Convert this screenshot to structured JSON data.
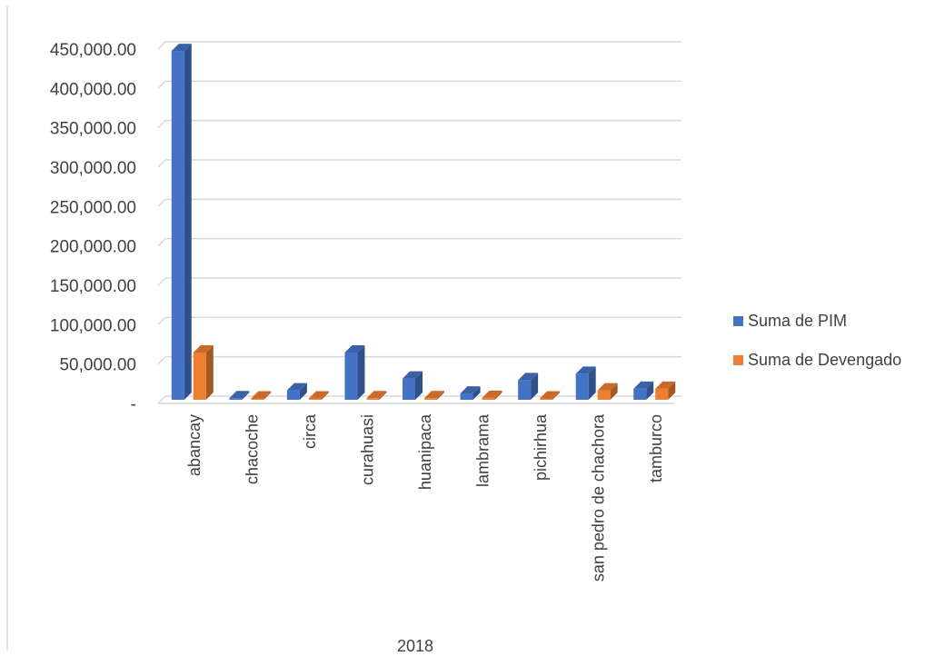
{
  "chart_data": {
    "type": "bar",
    "style": "3d-clustered-column",
    "categories": [
      "abancay",
      "chacoche",
      "circa",
      "curahuasi",
      "huanipaca",
      "lambrama",
      "pichirhua",
      "san pedro de chachora",
      "tamburco"
    ],
    "category_group": "2018",
    "series": [
      {
        "name": "Suma de PIM",
        "color": "#4472c4",
        "values": [
          443000,
          2000,
          12000,
          60000,
          27000,
          8000,
          25000,
          33000,
          14000
        ]
      },
      {
        "name": "Suma de Devengado",
        "color": "#ed7d31",
        "values": [
          60000,
          0,
          1000,
          2000,
          2000,
          2500,
          0,
          12000,
          14000
        ]
      }
    ],
    "ylim": [
      0,
      450000
    ],
    "y_ticks": [
      "-",
      "50,000.00",
      "100,000.00",
      "150,000.00",
      "200,000.00",
      "250,000.00",
      "300,000.00",
      "350,000.00",
      "400,000.00",
      "450,000.00"
    ],
    "grid": true,
    "legend_position": "right"
  }
}
